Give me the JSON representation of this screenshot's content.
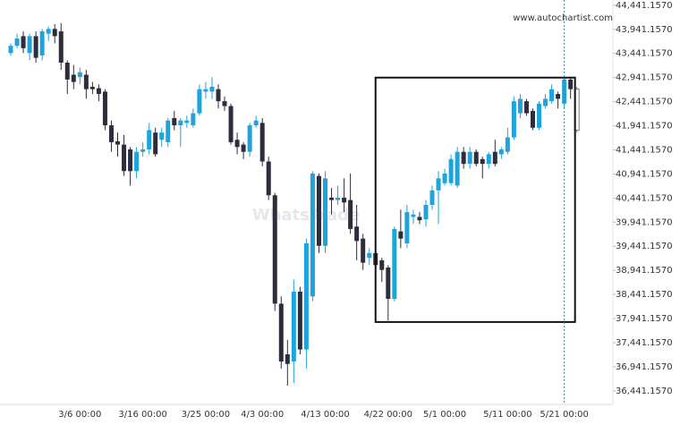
{
  "chart_data": {
    "type": "candlestick",
    "watermark": "www.autochartist.com",
    "brand": "WhatsTrade",
    "categories": [
      null,
      null,
      null,
      null,
      null,
      null,
      null,
      null,
      null,
      null,
      null,
      "3/6 00:00",
      null,
      null,
      null,
      null,
      null,
      null,
      null,
      null,
      null,
      "3/16 00:00",
      null,
      null,
      null,
      null,
      null,
      null,
      null,
      null,
      null,
      "3/25 00:00",
      null,
      null,
      null,
      null,
      null,
      null,
      null,
      null,
      "4/3 00:00",
      null,
      null,
      null,
      null,
      null,
      null,
      null,
      null,
      null,
      "4/13 00:00",
      null,
      null,
      null,
      null,
      null,
      null,
      null,
      null,
      null,
      "4/22 00:00",
      null,
      null,
      null,
      null,
      null,
      null,
      null,
      null,
      "5/1 00:00",
      null,
      null,
      null,
      null,
      null,
      null,
      null,
      null,
      null,
      "5/11 00:00",
      null,
      null,
      null,
      null,
      null,
      null,
      null,
      null,
      "5/21 00:00",
      null,
      null
    ],
    "open": [
      43450,
      43600,
      43800,
      43450,
      43800,
      43400,
      43850,
      43950,
      43900,
      43250,
      43000,
      42950,
      43000,
      42750,
      42720,
      42650,
      41950,
      41620,
      41550,
      41450,
      41000,
      41400,
      41450,
      41800,
      41650,
      41600,
      42100,
      41950,
      42000,
      41950,
      42200,
      42650,
      42650,
      42700,
      42450,
      42350,
      41650,
      41550,
      41400,
      41950,
      42000,
      41200,
      40500,
      38250,
      37200,
      37050,
      38500,
      37300,
      38400,
      40900,
      39450,
      40450,
      40400,
      40450,
      40400,
      39850,
      39600,
      39200,
      39300,
      39150,
      39000,
      38350,
      39750,
      39500,
      40050,
      40050,
      40000,
      40300,
      40600,
      40750,
      40750,
      40700,
      41400,
      41150,
      41400,
      41250,
      41150,
      41400,
      41350,
      41400,
      41700,
      42200,
      42450,
      42250,
      41900,
      42350,
      42450,
      42600,
      42400,
      42900,
      42700
    ],
    "high": [
      43650,
      43850,
      43900,
      43850,
      43900,
      43950,
      44000,
      44050,
      44070,
      43300,
      43200,
      43150,
      43100,
      42850,
      42800,
      42700,
      42050,
      41800,
      41750,
      41500,
      41500,
      41600,
      42000,
      41900,
      41900,
      42100,
      42250,
      42100,
      42150,
      42300,
      42800,
      42850,
      42950,
      42800,
      42550,
      42400,
      41800,
      41600,
      42000,
      42150,
      42100,
      41300,
      40550,
      38400,
      37500,
      38750,
      38600,
      39600,
      41000,
      40950,
      41000,
      40650,
      40700,
      40850,
      40950,
      40300,
      39700,
      39400,
      39400,
      39200,
      39050,
      39850,
      40200,
      40300,
      40200,
      40150,
      40400,
      40700,
      41000,
      41050,
      41350,
      41500,
      41500,
      41500,
      41450,
      41300,
      41400,
      41650,
      41500,
      41900,
      42550,
      42600,
      42500,
      42300,
      42450,
      42600,
      42800,
      42650,
      42950,
      42950,
      42750
    ],
    "low": [
      43400,
      43550,
      43450,
      43300,
      43250,
      43300,
      43700,
      43650,
      43100,
      42600,
      42700,
      42800,
      42500,
      42600,
      42450,
      41850,
      41400,
      41300,
      40900,
      40700,
      40850,
      41300,
      41350,
      41300,
      41500,
      41500,
      41850,
      41500,
      41900,
      41900,
      42150,
      42500,
      42500,
      42300,
      42250,
      41550,
      41350,
      41250,
      41300,
      41900,
      41100,
      40400,
      38100,
      36900,
      36550,
      36600,
      37200,
      36900,
      38300,
      39300,
      39300,
      40100,
      40300,
      40150,
      39700,
      39150,
      38950,
      39050,
      38950,
      38700,
      37900,
      38300,
      39400,
      39400,
      39900,
      39900,
      39850,
      40200,
      39900,
      40700,
      40700,
      40650,
      41050,
      41050,
      41100,
      40850,
      41050,
      41100,
      41250,
      41350,
      41650,
      42100,
      42150,
      41850,
      41850,
      42300,
      42400,
      42300,
      42300,
      42500,
      41800
    ],
    "close": [
      43600,
      43750,
      43550,
      43800,
      43350,
      43900,
      43950,
      43800,
      43250,
      42900,
      42850,
      43050,
      42700,
      42700,
      42600,
      41950,
      41600,
      41550,
      41000,
      41000,
      41400,
      41450,
      41850,
      41350,
      41800,
      42050,
      41950,
      42050,
      42050,
      42200,
      42700,
      42700,
      42750,
      42450,
      42350,
      41600,
      41500,
      41400,
      41950,
      42050,
      41200,
      40500,
      38250,
      37050,
      37000,
      38500,
      37300,
      39500,
      40950,
      39450,
      40850,
      40400,
      40450,
      40350,
      39800,
      39550,
      39100,
      39300,
      39050,
      38950,
      38350,
      39800,
      39600,
      40150,
      40100,
      39980,
      40300,
      40600,
      40850,
      40950,
      41250,
      41400,
      41150,
      41400,
      41150,
      41150,
      41350,
      41150,
      41450,
      41700,
      42450,
      42500,
      42200,
      41900,
      42400,
      42500,
      42700,
      42500,
      42900,
      42700,
      41850
    ],
    "up_color": "#1fa3dc",
    "down_color": "#2d2d3d",
    "current_fill": "#ffffff",
    "current_stroke": "#777777",
    "box": {
      "start": 58,
      "end": 89,
      "top": 42940,
      "bottom": 37870,
      "color": "#111111"
    },
    "now_index": 88,
    "ylim": [
      36160,
      44550
    ],
    "yticks": [
      {
        "value": 36441.157,
        "label": "36,441.1570"
      },
      {
        "value": 36941.157,
        "label": "36,941.1570"
      },
      {
        "value": 37441.157,
        "label": "37,441.1570"
      },
      {
        "value": 37941.157,
        "label": "37,941.1570"
      },
      {
        "value": 38441.157,
        "label": "38,441.1570"
      },
      {
        "value": 38941.157,
        "label": "38,941.1570"
      },
      {
        "value": 39441.157,
        "label": "39,441.1570"
      },
      {
        "value": 39941.157,
        "label": "39,941.1570"
      },
      {
        "value": 40441.157,
        "label": "40,441.1570"
      },
      {
        "value": 40941.157,
        "label": "40,941.1570"
      },
      {
        "value": 41441.157,
        "label": "41,441.1570"
      },
      {
        "value": 41941.157,
        "label": "41,941.1570"
      },
      {
        "value": 42441.157,
        "label": "42,441.1570"
      },
      {
        "value": 42941.157,
        "label": "42,941.1570"
      },
      {
        "value": 43441.157,
        "label": "43,441.1570"
      },
      {
        "value": 43941.157,
        "label": "43,941.1570"
      },
      {
        "value": 44441.157,
        "label": "44,441.1570"
      }
    ],
    "grid": false
  }
}
